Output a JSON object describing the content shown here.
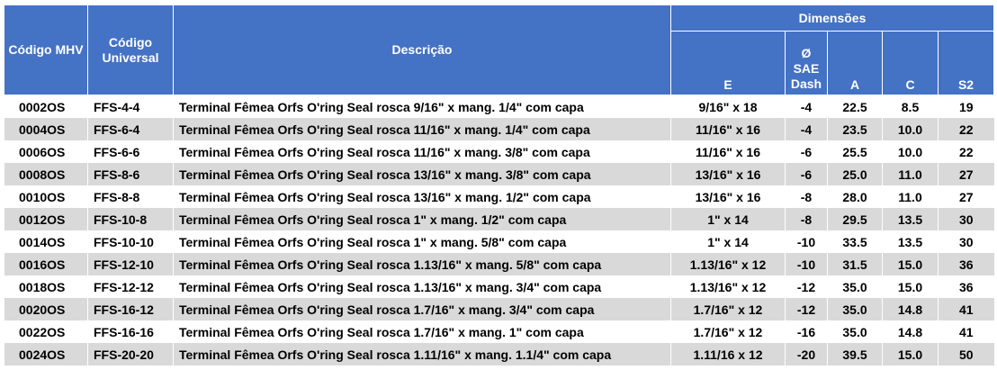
{
  "header": {
    "codigo_mhv": "Código MHV",
    "codigo_universal": "Código Universal",
    "descricao": "Descrição",
    "dimensoes": "Dimensões",
    "e": "E",
    "dash_symbol": "Ø",
    "dash_sae": "SAE",
    "dash_dash": "Dash",
    "a": "A",
    "c": "C",
    "s2": "S2"
  },
  "rows": [
    {
      "mhv": "0002OS",
      "universal": "FFS-4-4",
      "descricao": "Terminal Fêmea Orfs O'ring Seal rosca 9/16\" x mang. 1/4\" com capa",
      "e": "9/16\" x 18",
      "dash": "-4",
      "a": "22.5",
      "c": "8.5",
      "s2": "19"
    },
    {
      "mhv": "0004OS",
      "universal": "FFS-6-4",
      "descricao": "Terminal Fêmea Orfs O'ring Seal rosca 11/16\" x mang. 1/4\" com capa",
      "e": "11/16\" x 16",
      "dash": "-4",
      "a": "23.5",
      "c": "10.0",
      "s2": "22"
    },
    {
      "mhv": "0006OS",
      "universal": "FFS-6-6",
      "descricao": "Terminal Fêmea Orfs O'ring Seal rosca 11/16\" x mang. 3/8\" com capa",
      "e": "11/16\" x 16",
      "dash": "-6",
      "a": "25.5",
      "c": "10.0",
      "s2": "22"
    },
    {
      "mhv": "0008OS",
      "universal": "FFS-8-6",
      "descricao": "Terminal Fêmea Orfs O'ring Seal rosca 13/16\" x mang. 3/8\" com capa",
      "e": "13/16\" x 16",
      "dash": "-6",
      "a": "25.0",
      "c": "11.0",
      "s2": "27"
    },
    {
      "mhv": "0010OS",
      "universal": "FFS-8-8",
      "descricao": "Terminal Fêmea Orfs O'ring Seal rosca 13/16\" x mang. 1/2\" com capa",
      "e": "13/16\" x 16",
      "dash": "-8",
      "a": "28.0",
      "c": "11.0",
      "s2": "27"
    },
    {
      "mhv": "0012OS",
      "universal": "FFS-10-8",
      "descricao": "Terminal Fêmea Orfs O'ring Seal rosca 1\" x mang. 1/2\" com capa",
      "e": "1\" x 14",
      "dash": "-8",
      "a": "29.5",
      "c": "13.5",
      "s2": "30"
    },
    {
      "mhv": "0014OS",
      "universal": "FFS-10-10",
      "descricao": "Terminal Fêmea Orfs O'ring Seal rosca 1\" x mang. 5/8\" com capa",
      "e": "1\" x 14",
      "dash": "-10",
      "a": "33.5",
      "c": "13.5",
      "s2": "30"
    },
    {
      "mhv": "0016OS",
      "universal": "FFS-12-10",
      "descricao": "Terminal Fêmea Orfs O'ring Seal rosca 1.13/16\" x mang. 5/8\" com capa",
      "e": "1.13/16\" x 12",
      "dash": "-10",
      "a": "31.5",
      "c": "15.0",
      "s2": "36"
    },
    {
      "mhv": "0018OS",
      "universal": "FFS-12-12",
      "descricao": "Terminal Fêmea Orfs O'ring Seal rosca 1.13/16\" x mang. 3/4\" com capa",
      "e": "1.13/16\" x 12",
      "dash": "-12",
      "a": "35.0",
      "c": "15.0",
      "s2": "36"
    },
    {
      "mhv": "0020OS",
      "universal": "FFS-16-12",
      "descricao": "Terminal Fêmea Orfs O'ring Seal rosca 1.7/16\" x mang. 3/4\" com capa",
      "e": "1.7/16\" x 12",
      "dash": "-12",
      "a": "35.0",
      "c": "14.8",
      "s2": "41"
    },
    {
      "mhv": "0022OS",
      "universal": "FFS-16-16",
      "descricao": "Terminal Fêmea Orfs O'ring Seal rosca 1.7/16\" x mang. 1\" com capa",
      "e": "1.7/16\" x 12",
      "dash": "-16",
      "a": "35.0",
      "c": "14.8",
      "s2": "41"
    },
    {
      "mhv": "0024OS",
      "universal": "FFS-20-20",
      "descricao": "Terminal Fêmea Orfs O'ring Seal rosca 1.11/16\" x mang. 1.1/4\" com capa",
      "e": "1.11/16 x 12",
      "dash": "-20",
      "a": "39.5",
      "c": "15.0",
      "s2": "50"
    }
  ],
  "colors": {
    "header_bg": "#4472c4",
    "header_text": "#ffffff",
    "row_alt_bg": "#d9d9d9",
    "row_bg": "#ffffff"
  }
}
